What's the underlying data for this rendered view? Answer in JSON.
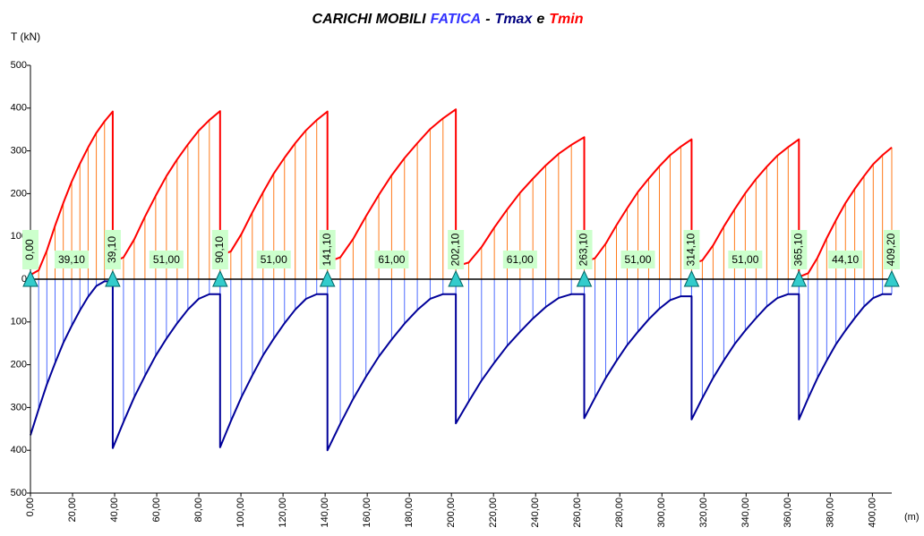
{
  "chart_data": {
    "type": "line",
    "title_parts": [
      {
        "text": "CARICHI MOBILI",
        "color": "#000000"
      },
      {
        "text": "FATICA",
        "color": "#3333ff"
      },
      {
        "text": "-",
        "color": "#000000"
      },
      {
        "text": "Tmax",
        "color": "#000080"
      },
      {
        "text": "e",
        "color": "#000000"
      },
      {
        "text": "Tmin",
        "color": "#ff0000"
      }
    ],
    "ylabel": "T (kN)",
    "xlabel": "(m)",
    "xlim": [
      0,
      409.2
    ],
    "ylim": [
      -500,
      500
    ],
    "xticks": [
      {
        "value": 0,
        "label": "0,00"
      },
      {
        "value": 20,
        "label": "20,00"
      },
      {
        "value": 40,
        "label": "40,00"
      },
      {
        "value": 60,
        "label": "60,00"
      },
      {
        "value": 80,
        "label": "80,00"
      },
      {
        "value": 100,
        "label": "100,00"
      },
      {
        "value": 120,
        "label": "120,00"
      },
      {
        "value": 140,
        "label": "140,00"
      },
      {
        "value": 160,
        "label": "160,00"
      },
      {
        "value": 180,
        "label": "180,00"
      },
      {
        "value": 200,
        "label": "200,00"
      },
      {
        "value": 220,
        "label": "220,00"
      },
      {
        "value": 240,
        "label": "240,00"
      },
      {
        "value": 260,
        "label": "260,00"
      },
      {
        "value": 280,
        "label": "280,00"
      },
      {
        "value": 300,
        "label": "300,00"
      },
      {
        "value": 320,
        "label": "320,00"
      },
      {
        "value": 340,
        "label": "340,00"
      },
      {
        "value": 360,
        "label": "360,00"
      },
      {
        "value": 380,
        "label": "380,00"
      },
      {
        "value": 400,
        "label": "400,00"
      }
    ],
    "yticks": [
      500,
      400,
      300,
      200,
      100,
      0,
      {
        "value": -100,
        "label": "100"
      },
      {
        "value": -200,
        "label": "200"
      },
      {
        "value": -300,
        "label": "300"
      },
      {
        "value": -400,
        "label": "400"
      },
      {
        "value": -500,
        "label": "500"
      }
    ],
    "x": [
      0,
      3.9,
      7.8,
      11.7,
      15.6,
      19.6,
      23.5,
      27.4,
      31.3,
      35.2,
      39.1,
      39.1,
      44.2,
      49.3,
      54.4,
      59.5,
      64.6,
      69.7,
      74.8,
      79.9,
      85.0,
      90.1,
      90.1,
      95.2,
      100.3,
      105.4,
      110.5,
      115.6,
      120.7,
      125.8,
      130.9,
      136.0,
      141.1,
      141.1,
      147.2,
      153.3,
      159.4,
      165.5,
      171.6,
      177.7,
      183.8,
      189.9,
      196.0,
      202.1,
      202.1,
      208.2,
      214.3,
      220.4,
      226.5,
      232.6,
      238.7,
      244.8,
      250.9,
      257.0,
      263.1,
      263.1,
      268.2,
      273.3,
      278.4,
      283.5,
      288.6,
      293.7,
      298.8,
      303.9,
      309.0,
      314.1,
      314.1,
      319.2,
      324.3,
      329.4,
      334.5,
      339.6,
      344.7,
      349.8,
      354.9,
      360.0,
      365.1,
      365.1,
      369.5,
      373.9,
      378.3,
      382.7,
      387.2,
      391.6,
      396.0,
      400.4,
      404.8,
      409.2
    ],
    "series": [
      {
        "color": "#ff0000",
        "hatch": "#ff7a1a",
        "values": [
          10,
          21,
          67,
          125,
          178,
          228,
          270,
          308,
          342,
          369,
          392,
          40,
          51,
          93,
          146,
          195,
          241,
          280,
          315,
          347,
          372,
          393,
          55,
          65,
          106,
          156,
          203,
          247,
          284,
          318,
          348,
          372,
          392,
          40,
          51,
          94,
          147,
          197,
          243,
          283,
          318,
          351,
          376,
          397,
          30,
          39,
          75,
          121,
          163,
          202,
          235,
          266,
          293,
          314,
          332,
          40,
          49,
          83,
          126,
          166,
          204,
          235,
          264,
          290,
          310,
          327,
          35,
          44,
          79,
          123,
          163,
          201,
          234,
          263,
          289,
          309,
          327,
          5,
          14,
          50,
          96,
          138,
          178,
          211,
          241,
          269,
          290,
          308
        ]
      },
      {
        "color": "#000099",
        "hatch": "#4d6bff",
        "values": [
          -365,
          -304,
          -246,
          -196,
          -149,
          -109,
          -73,
          -41,
          -16,
          -5,
          -5,
          -395,
          -334,
          -276,
          -226,
          -179,
          -139,
          -103,
          -71,
          -46,
          -35,
          -35,
          -393,
          -332,
          -275,
          -225,
          -178,
          -139,
          -103,
          -71,
          -46,
          -35,
          -35,
          -400,
          -338,
          -280,
          -228,
          -181,
          -141,
          -104,
          -72,
          -46,
          -35,
          -35,
          -337,
          -286,
          -237,
          -195,
          -156,
          -123,
          -92,
          -65,
          -44,
          -35,
          -35,
          -325,
          -277,
          -231,
          -191,
          -154,
          -123,
          -94,
          -69,
          -49,
          -40,
          -40,
          -328,
          -278,
          -231,
          -190,
          -152,
          -120,
          -91,
          -64,
          -44,
          -35,
          -35,
          -328,
          -278,
          -231,
          -190,
          -152,
          -120,
          -91,
          -64,
          -44,
          -35,
          -35
        ]
      }
    ],
    "supports": [
      {
        "value": 0,
        "label": "0,00"
      },
      {
        "value": 39.1,
        "label": "39,10"
      },
      {
        "value": 90.1,
        "label": "90,10"
      },
      {
        "value": 141.1,
        "label": "141,10"
      },
      {
        "value": 202.1,
        "label": "202,10"
      },
      {
        "value": 263.1,
        "label": "263,10"
      },
      {
        "value": 314.1,
        "label": "314,10"
      },
      {
        "value": 365.1,
        "label": "365,10"
      },
      {
        "value": 409.2,
        "label": "409,20"
      }
    ],
    "spans": [
      {
        "value": 39.1,
        "label": "39,10"
      },
      {
        "value": 51,
        "label": "51,00"
      },
      {
        "value": 51,
        "label": "51,00"
      },
      {
        "value": 61,
        "label": "61,00"
      },
      {
        "value": 61,
        "label": "61,00"
      },
      {
        "value": 51,
        "label": "51,00"
      },
      {
        "value": 51,
        "label": "51,00"
      },
      {
        "value": 44.1,
        "label": "44,10"
      }
    ],
    "support_color": "#33cccc",
    "label_box_color": "#ccffcc"
  }
}
